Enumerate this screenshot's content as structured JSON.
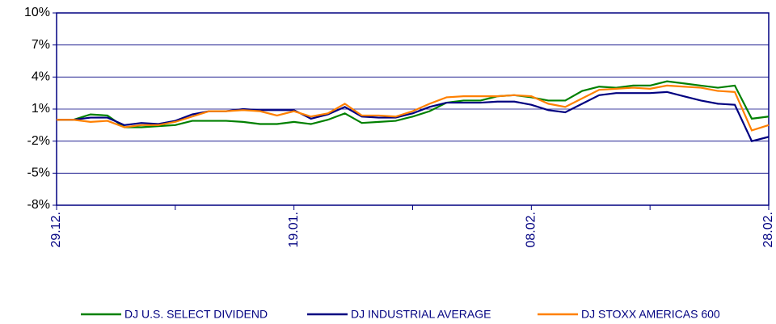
{
  "chart_data": {
    "type": "line",
    "categories": [
      "29.12.",
      null,
      null,
      null,
      null,
      null,
      null,
      null,
      null,
      null,
      null,
      null,
      null,
      null,
      "19.01.",
      null,
      null,
      null,
      null,
      null,
      null,
      null,
      null,
      null,
      null,
      null,
      null,
      null,
      "08.02.",
      null,
      null,
      null,
      null,
      null,
      null,
      null,
      null,
      null,
      null,
      null,
      null,
      null,
      "28.02."
    ],
    "series": [
      {
        "name": "DJ U.S. SELECT DIVIDEND",
        "color": "#008000",
        "values": [
          0,
          0,
          0.5,
          0.4,
          -0.7,
          -0.7,
          -0.6,
          -0.5,
          -0.1,
          -0.1,
          -0.1,
          -0.2,
          -0.4,
          -0.4,
          -0.2,
          -0.4,
          0,
          0.6,
          -0.3,
          -0.2,
          -0.1,
          0.3,
          0.8,
          1.6,
          1.8,
          1.8,
          2.2,
          2.3,
          2.1,
          1.8,
          1.8,
          2.7,
          3.1,
          3.0,
          3.2,
          3.2,
          3.6,
          3.4,
          3.2,
          3.0,
          3.2,
          0.1,
          0.3
        ]
      },
      {
        "name": "DJ INDUSTRIAL AVERAGE",
        "color": "#000080",
        "values": [
          0,
          0,
          0.2,
          0.2,
          -0.5,
          -0.3,
          -0.4,
          -0.1,
          0.5,
          0.8,
          0.8,
          1.0,
          0.9,
          0.9,
          0.9,
          0.1,
          0.5,
          1.2,
          0.3,
          0.2,
          0.2,
          0.6,
          1.2,
          1.6,
          1.6,
          1.6,
          1.7,
          1.7,
          1.4,
          0.9,
          0.7,
          1.5,
          2.3,
          2.5,
          2.5,
          2.5,
          2.6,
          2.2,
          1.8,
          1.5,
          1.4,
          -2.0,
          -1.6
        ]
      },
      {
        "name": "DJ STOXX AMERICAS 600",
        "color": "#ff8000",
        "values": [
          0,
          0,
          -0.2,
          -0.1,
          -0.7,
          -0.5,
          -0.5,
          -0.2,
          0.3,
          0.8,
          0.8,
          0.9,
          0.8,
          0.4,
          0.8,
          0.3,
          0.6,
          1.5,
          0.4,
          0.4,
          0.3,
          0.8,
          1.5,
          2.1,
          2.2,
          2.2,
          2.2,
          2.3,
          2.2,
          1.5,
          1.2,
          2.0,
          2.8,
          2.9,
          3.0,
          2.9,
          3.2,
          3.1,
          3.0,
          2.7,
          2.6,
          -1.0,
          -0.5
        ]
      }
    ],
    "ylim": [
      -8,
      10
    ],
    "yticks": [
      {
        "value": 10,
        "label": "10%"
      },
      {
        "value": 7,
        "label": "7%"
      },
      {
        "value": 4,
        "label": "4%"
      },
      {
        "value": 1,
        "label": "1%"
      },
      {
        "value": -2,
        "label": "-2%"
      },
      {
        "value": -5,
        "label": "-5%"
      },
      {
        "value": -8,
        "label": "-8%"
      }
    ],
    "grid": true,
    "legend": "bottom"
  }
}
